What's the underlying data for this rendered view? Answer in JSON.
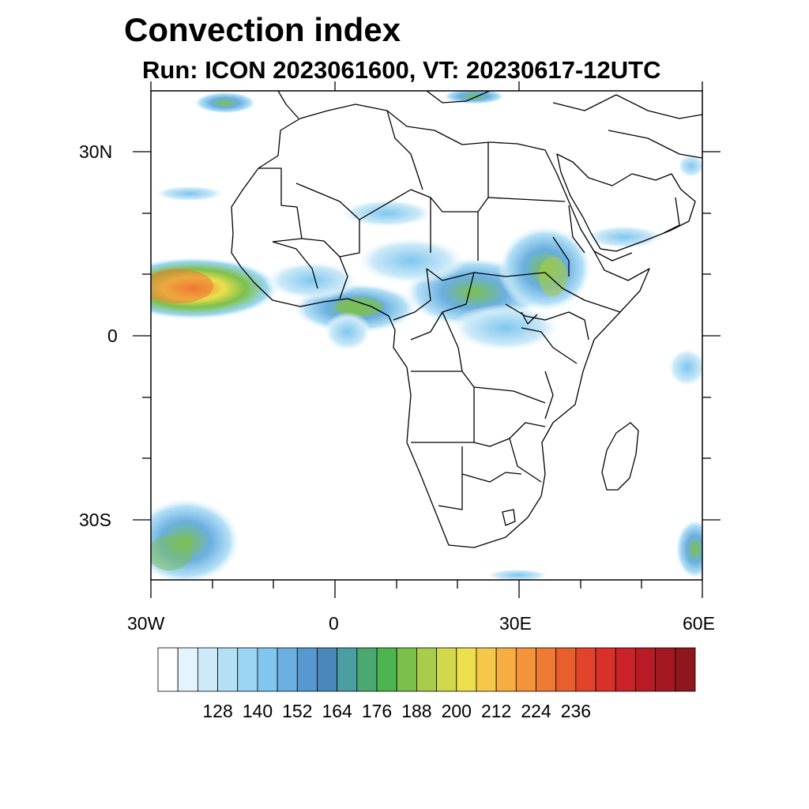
{
  "title": "Convection index",
  "subtitle": "Run: ICON 2023061600,  VT: 20230617-12UTC",
  "axes": {
    "x_tick_labels": [
      "30W",
      "0",
      "30E",
      "60E"
    ],
    "y_tick_labels": [
      "30N",
      "0",
      "30S"
    ],
    "lon_range": [
      -30,
      60
    ],
    "lat_range": [
      -40,
      40
    ]
  },
  "colorbar": {
    "labels": [
      "128",
      "140",
      "152",
      "164",
      "176",
      "188",
      "200",
      "212",
      "224",
      "236"
    ],
    "colors": [
      "#ffffff",
      "#e5f4fc",
      "#cdeaf8",
      "#b4e0f6",
      "#9ad5f3",
      "#80c6ee",
      "#6aafe0",
      "#5798cf",
      "#4a88bc",
      "#4b9fa3",
      "#4aa871",
      "#4cb54e",
      "#7cc04c",
      "#a9cd4b",
      "#d2d84b",
      "#ecdf4c",
      "#f6c84a",
      "#f6ad42",
      "#f3933a",
      "#ef7a33",
      "#e85e2d",
      "#e2442b",
      "#d9302a",
      "#c92229",
      "#b81b25",
      "#a41921",
      "#8e171d"
    ]
  },
  "features": [
    "coastlines",
    "country borders",
    "convection index shading"
  ]
}
